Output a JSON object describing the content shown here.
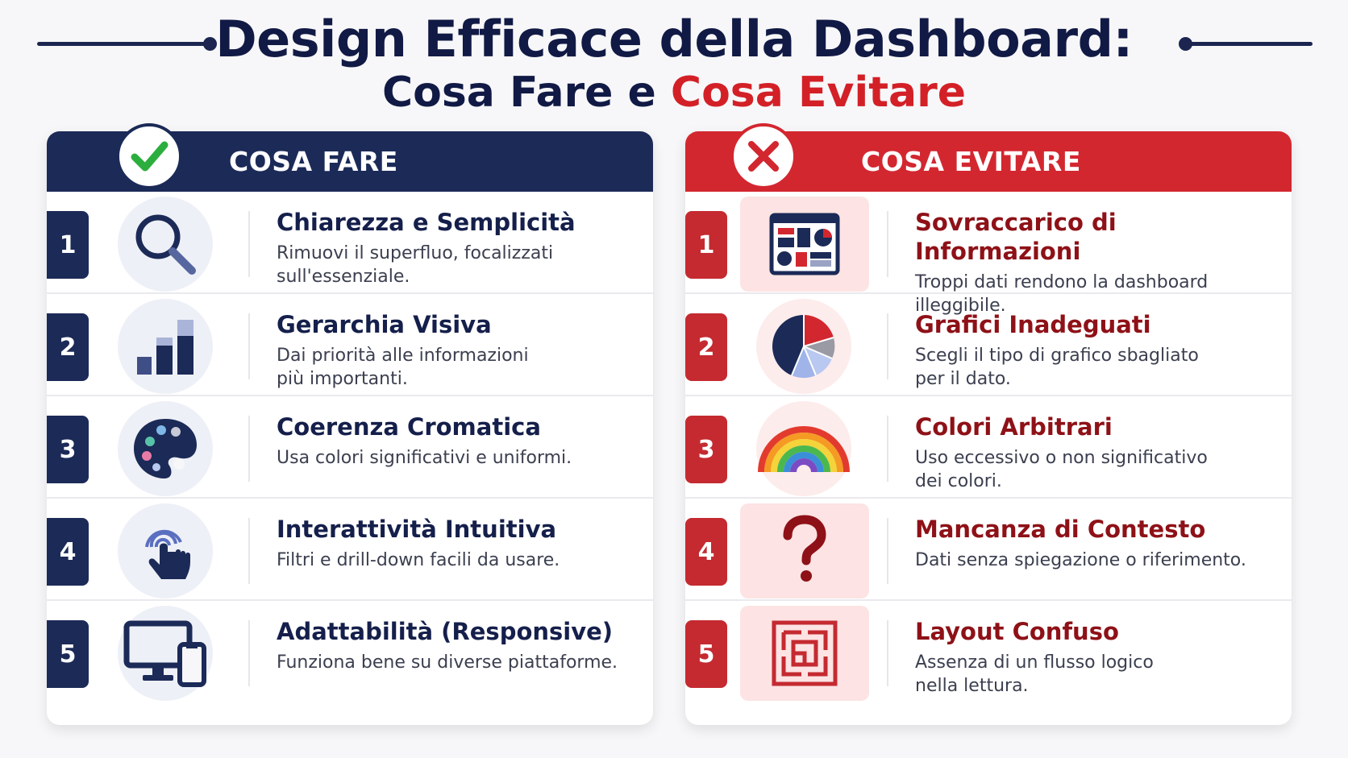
{
  "title": {
    "line1": "Design Efficace della Dashboard:",
    "line2_a": "Cosa Fare e ",
    "line2_b": "Cosa Evitare"
  },
  "colors": {
    "navy": "#1b2a57",
    "red": "#d32730",
    "dark_red_text": "#8e1117"
  },
  "do": {
    "header": "COSA FARE",
    "badge_icon": "check-icon",
    "items": [
      {
        "num": "1",
        "title": "Chiarezza e Semplicità",
        "desc1": "Rimuovi il superfluo, focalizzati",
        "desc2": "sull'essenziale.",
        "icon": "magnifier-icon"
      },
      {
        "num": "2",
        "title": "Gerarchia Visiva",
        "desc1": "Dai priorità alle informazioni",
        "desc2": "più importanti.",
        "icon": "bar-chart-icon"
      },
      {
        "num": "3",
        "title": "Coerenza Cromatica",
        "desc1": "Usa colori significativi e uniformi.",
        "desc2": "",
        "icon": "palette-icon"
      },
      {
        "num": "4",
        "title": "Interattività Intuitiva",
        "desc1": "Filtri e drill-down facili da usare.",
        "desc2": "",
        "icon": "touch-hand-icon"
      },
      {
        "num": "5",
        "title": "Adattabilità (Responsive)",
        "desc1": "Funziona bene su diverse piattaforme.",
        "desc2": "",
        "icon": "devices-icon"
      }
    ]
  },
  "avoid": {
    "header": "COSA EVITARE",
    "badge_icon": "cross-icon",
    "items": [
      {
        "num": "1",
        "title": "Sovraccarico di Informazioni",
        "desc1": "Troppi dati rendono la dashboard",
        "desc2": "illeggibile.",
        "icon": "cluttered-dashboard-icon"
      },
      {
        "num": "2",
        "title": "Grafici Inadeguati",
        "desc1": "Scegli il tipo di grafico sbagliato",
        "desc2": "per il dato.",
        "icon": "pie-chart-icon"
      },
      {
        "num": "3",
        "title": "Colori Arbitrari",
        "desc1": "Uso eccessivo o non significativo",
        "desc2": "dei colori.",
        "icon": "rainbow-icon"
      },
      {
        "num": "4",
        "title": "Mancanza di Contesto",
        "desc1": "Dati senza spiegazione o riferimento.",
        "desc2": "",
        "icon": "question-mark-icon"
      },
      {
        "num": "5",
        "title": "Layout Confuso",
        "desc1": "Assenza di un flusso logico",
        "desc2": "nella lettura.",
        "icon": "maze-icon"
      }
    ]
  }
}
